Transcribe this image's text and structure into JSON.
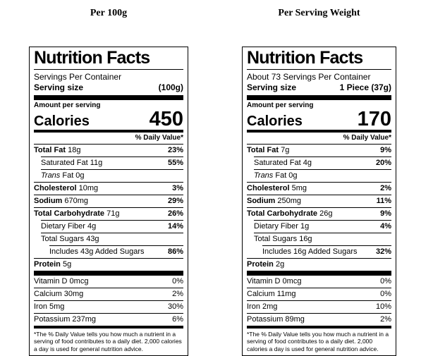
{
  "labels": [
    {
      "heading": "Per 100g",
      "title": "Nutrition Facts",
      "servings_per_container": "Servings Per Container",
      "serving_size_label": "Serving size",
      "serving_size_value": "(100g)",
      "amount_per_serving": "Amount per serving",
      "calories_label": "Calories",
      "calories_value": "450",
      "daily_value_header": "% Daily Value*",
      "rows": [
        {
          "strong": "Total Fat ",
          "text": "18g",
          "dv": "23%"
        },
        {
          "text": "Saturated Fat 11g",
          "dv": "55%"
        },
        {
          "em": "Trans ",
          "text": "Fat 0g",
          "dv": ""
        },
        {
          "strong": "Cholesterol ",
          "text": "10mg",
          "dv": "3%"
        },
        {
          "strong": "Sodium ",
          "text": "670mg",
          "dv": "29%"
        },
        {
          "strong": "Total Carbohydrate ",
          "text": "71g",
          "dv": "26%"
        },
        {
          "text": "Dietary Fiber 4g",
          "dv": "14%"
        },
        {
          "text": "Total Sugars 43g",
          "dv": ""
        },
        {
          "text": "Includes 43g Added Sugars",
          "dv": "86%"
        },
        {
          "strong": "Protein ",
          "text": "5g",
          "dv": ""
        }
      ],
      "vitamins": [
        {
          "text": "Vitamin D 0mcg",
          "dv": "0%"
        },
        {
          "text": "Calcium 30mg",
          "dv": "2%"
        },
        {
          "text": "Iron 5mg",
          "dv": "30%"
        },
        {
          "text": "Potassium 237mg",
          "dv": "6%"
        }
      ],
      "footnote": "*The % Daily Value tells you how much a nutrient in a serving of food contributes to a daily diet. 2,000 calories a day is used for general nutrition advice."
    },
    {
      "heading": "Per Serving Weight",
      "title": "Nutrition Facts",
      "servings_per_container": "About 73 Servings Per Container",
      "serving_size_label": "Serving size",
      "serving_size_value": "1 Piece (37g)",
      "amount_per_serving": "Amount per serving",
      "calories_label": "Calories",
      "calories_value": "170",
      "daily_value_header": "% Daily Value*",
      "rows": [
        {
          "strong": "Total Fat ",
          "text": "7g",
          "dv": "9%"
        },
        {
          "text": "Saturated Fat 4g",
          "dv": "20%"
        },
        {
          "em": "Trans ",
          "text": "Fat 0g",
          "dv": ""
        },
        {
          "strong": "Cholesterol ",
          "text": "5mg",
          "dv": "2%"
        },
        {
          "strong": "Sodium ",
          "text": "250mg",
          "dv": "11%"
        },
        {
          "strong": "Total Carbohydrate ",
          "text": "26g",
          "dv": "9%"
        },
        {
          "text": "Dietary Fiber 1g",
          "dv": "4%"
        },
        {
          "text": "Total Sugars 16g",
          "dv": ""
        },
        {
          "text": "Includes 16g Added Sugars",
          "dv": "32%"
        },
        {
          "strong": "Protein ",
          "text": "2g",
          "dv": ""
        }
      ],
      "vitamins": [
        {
          "text": "Vitamin D 0mcg",
          "dv": "0%"
        },
        {
          "text": "Calcium 11mg",
          "dv": "0%"
        },
        {
          "text": "Iron 2mg",
          "dv": "10%"
        },
        {
          "text": "Potassium 89mg",
          "dv": "2%"
        }
      ],
      "footnote": "*The % Daily Value tells you how much a nutrient in a serving of food contributes to a daily diet. 2,000 calories a day is used for general nutrition advice."
    }
  ]
}
